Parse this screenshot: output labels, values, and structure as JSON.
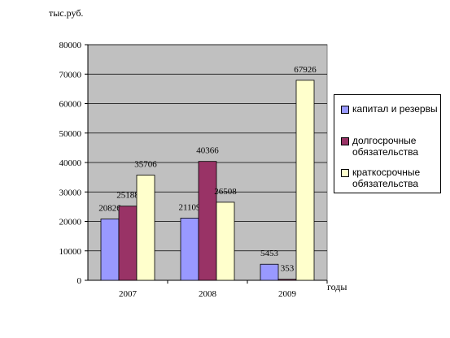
{
  "chart_data": {
    "type": "bar",
    "unit_label": "тыс.руб.",
    "xlabel": "годы",
    "ylabel": "",
    "title": "",
    "categories": [
      "2007",
      "2008",
      "2009"
    ],
    "ylim": [
      0,
      80000
    ],
    "yticks": [
      "0",
      "10000",
      "20000",
      "30000",
      "40000",
      "50000",
      "60000",
      "70000",
      "80000"
    ],
    "grid": true,
    "legend_position": "right",
    "series": [
      {
        "name": "капитал и резервы",
        "color": "#9999ff",
        "values": [
          20826,
          21109,
          5453
        ],
        "labels": [
          "20826",
          "21109",
          "5453"
        ]
      },
      {
        "name": "долгосрочные обязательства",
        "color": "#993366",
        "values": [
          25188,
          40366,
          353
        ],
        "labels": [
          "25188",
          "40366",
          "353"
        ]
      },
      {
        "name": "краткосрочные обязательства",
        "color": "#ffffcc",
        "values": [
          35706,
          26508,
          67926
        ],
        "labels": [
          "35706",
          "26508",
          "67926"
        ]
      }
    ]
  }
}
